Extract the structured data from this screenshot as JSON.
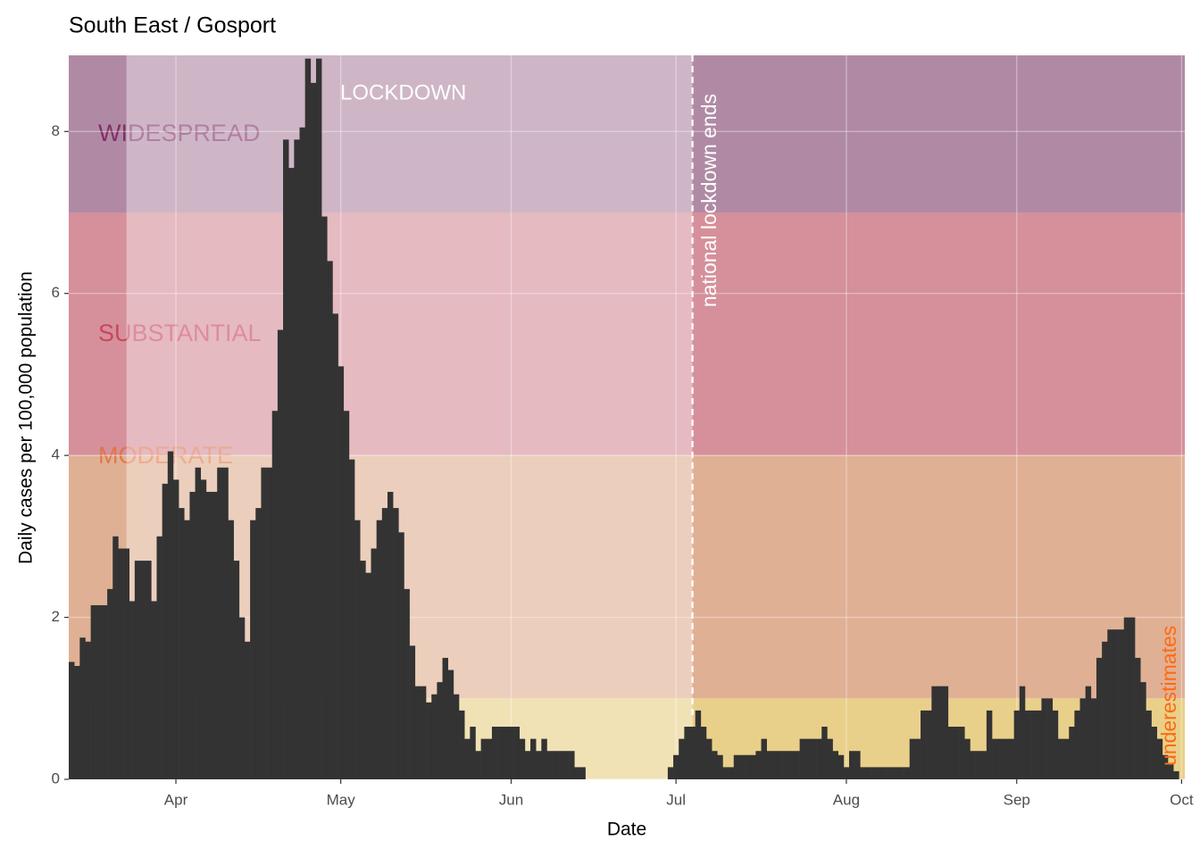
{
  "chart_data": {
    "type": "bar",
    "title": "South East / Gosport",
    "x_label": "Date",
    "y_label": "Daily cases per 100,000 population",
    "categories": [
      null,
      null,
      null,
      null,
      null,
      null,
      null,
      null,
      null,
      null,
      null,
      null,
      null,
      null,
      null,
      null,
      null,
      null,
      null,
      "Apr",
      null,
      null,
      null,
      null,
      null,
      null,
      null,
      null,
      null,
      null,
      null,
      null,
      null,
      null,
      null,
      null,
      null,
      null,
      null,
      null,
      null,
      null,
      null,
      null,
      null,
      null,
      null,
      null,
      null,
      "May",
      null,
      null,
      null,
      null,
      null,
      null,
      null,
      null,
      null,
      null,
      null,
      null,
      null,
      null,
      null,
      null,
      null,
      null,
      null,
      null,
      null,
      null,
      null,
      null,
      null,
      null,
      null,
      null,
      null,
      null,
      "Jun",
      null,
      null,
      null,
      null,
      null,
      null,
      null,
      null,
      null,
      null,
      null,
      null,
      null,
      null,
      null,
      null,
      null,
      null,
      null,
      null,
      null,
      null,
      null,
      null,
      null,
      null,
      null,
      null,
      null,
      "Jul",
      null,
      null,
      null,
      null,
      null,
      null,
      null,
      null,
      null,
      null,
      null,
      null,
      null,
      null,
      null,
      null,
      null,
      null,
      null,
      null,
      null,
      null,
      null,
      null,
      null,
      null,
      null,
      null,
      null,
      null,
      "Aug",
      null,
      null,
      null,
      null,
      null,
      null,
      null,
      null,
      null,
      null,
      null,
      null,
      null,
      null,
      null,
      null,
      null,
      null,
      null,
      null,
      null,
      null,
      null,
      null,
      null,
      null,
      null,
      null,
      null,
      null,
      "Sep",
      null,
      null,
      null,
      null,
      null,
      null,
      null,
      null,
      null,
      null,
      null,
      null,
      null,
      null,
      null,
      null,
      null,
      null,
      null,
      null,
      null,
      null,
      null,
      null,
      null,
      null,
      null,
      null,
      null,
      "Oct"
    ],
    "values": [
      1.45,
      1.4,
      1.75,
      1.7,
      2.15,
      2.15,
      2.15,
      2.35,
      3.0,
      2.85,
      2.85,
      2.2,
      2.7,
      2.7,
      2.7,
      2.2,
      3.0,
      3.65,
      4.05,
      3.7,
      3.35,
      3.2,
      3.55,
      3.85,
      3.7,
      3.55,
      3.55,
      3.85,
      3.85,
      3.2,
      2.7,
      2.0,
      1.7,
      3.2,
      3.35,
      3.85,
      3.85,
      4.55,
      5.55,
      7.9,
      7.55,
      7.9,
      8.05,
      8.9,
      8.6,
      8.9,
      6.95,
      6.4,
      5.75,
      5.1,
      4.55,
      3.95,
      3.2,
      2.7,
      2.55,
      2.85,
      3.2,
      3.35,
      3.55,
      3.35,
      3.05,
      2.35,
      1.65,
      1.15,
      1.15,
      0.95,
      1.05,
      1.2,
      1.5,
      1.35,
      1.05,
      0.85,
      0.5,
      0.65,
      0.35,
      0.5,
      0.5,
      0.65,
      0.65,
      0.65,
      0.65,
      0.65,
      0.5,
      0.35,
      0.5,
      0.35,
      0.5,
      0.35,
      0.35,
      0.35,
      0.35,
      0.35,
      0.15,
      0.15,
      0,
      0,
      0,
      0,
      0,
      0,
      0,
      0,
      0,
      0,
      0,
      0,
      0,
      0,
      0,
      0.15,
      0.3,
      0.5,
      0.65,
      0.65,
      0.85,
      0.65,
      0.5,
      0.35,
      0.3,
      0.15,
      0.15,
      0.3,
      0.3,
      0.3,
      0.3,
      0.35,
      0.5,
      0.35,
      0.35,
      0.35,
      0.35,
      0.35,
      0.35,
      0.5,
      0.5,
      0.5,
      0.5,
      0.65,
      0.5,
      0.35,
      0.3,
      0.15,
      0.35,
      0.35,
      0.15,
      0.15,
      0.15,
      0.15,
      0.15,
      0.15,
      0.15,
      0.15,
      0.15,
      0.5,
      0.5,
      0.85,
      0.85,
      1.15,
      1.15,
      1.15,
      0.65,
      0.65,
      0.65,
      0.5,
      0.35,
      0.35,
      0.35,
      0.85,
      0.5,
      0.5,
      0.5,
      0.5,
      0.85,
      1.15,
      0.85,
      0.85,
      0.85,
      1.0,
      1.0,
      0.85,
      0.5,
      0.5,
      0.65,
      0.85,
      1.0,
      1.15,
      1.0,
      1.5,
      1.7,
      1.85,
      1.85,
      1.85,
      2.0,
      2.0,
      1.5,
      1.2,
      0.85,
      0.65,
      0.5,
      0.3,
      0.2,
      0.1,
      null
    ],
    "color": "#333333",
    "ylim": [
      0,
      8.94
    ],
    "yticks": [
      0,
      2,
      4,
      6,
      8
    ],
    "grid": true,
    "bands": [
      {
        "from": 0,
        "to": 1,
        "color": "#e9d08a"
      },
      {
        "name": "MODERATE",
        "from": 1,
        "to": 4,
        "color": "#e0b094",
        "label_color": "#e0703f"
      },
      {
        "name": "SUBSTANTIAL",
        "from": 4,
        "to": 7,
        "color": "#d5909b",
        "label_color": "#c83a50"
      },
      {
        "name": "WIDESPREAD",
        "from": 7,
        "to": 8.94,
        "color": "#b08aa5",
        "label_color": "#7a1f5c"
      }
    ],
    "lockdown": {
      "label": "LOCKDOWN",
      "end_label": "national lockdown ends",
      "span": [
        10.5,
        113.5
      ]
    },
    "annotation": {
      "text": "underestimates",
      "color": "#ff6a10"
    }
  }
}
